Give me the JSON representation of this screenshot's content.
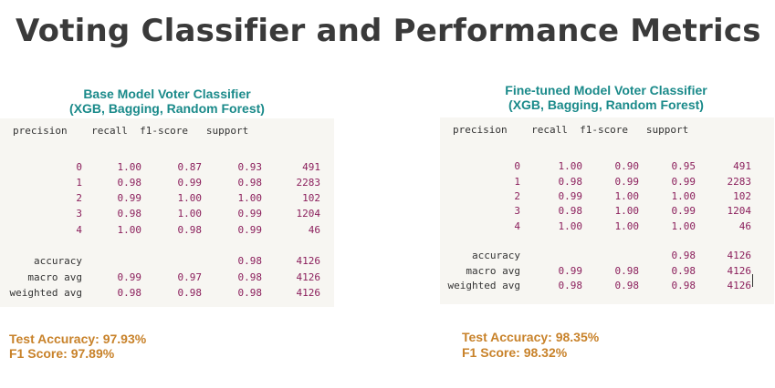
{
  "page": {
    "title": "Voting Classifier and Performance Metrics"
  },
  "panels": [
    {
      "heading": "Base Model Voter Classifier",
      "subheading": "(XGB, Bagging, Random Forest)",
      "header_text": "precision    recall  f1-score   support",
      "class_rows": [
        {
          "label": "0",
          "precision": "1.00",
          "recall": "0.87",
          "f1": "0.93",
          "support": "491"
        },
        {
          "label": "1",
          "precision": "0.98",
          "recall": "0.99",
          "f1": "0.98",
          "support": "2283"
        },
        {
          "label": "2",
          "precision": "0.99",
          "recall": "1.00",
          "f1": "1.00",
          "support": "102"
        },
        {
          "label": "3",
          "precision": "0.98",
          "recall": "1.00",
          "f1": "0.99",
          "support": "1204"
        },
        {
          "label": "4",
          "precision": "1.00",
          "recall": "0.98",
          "f1": "0.99",
          "support": "46"
        }
      ],
      "summary_rows": [
        {
          "label": "accuracy",
          "precision": "",
          "recall": "",
          "f1": "0.98",
          "support": "4126"
        },
        {
          "label": "macro avg",
          "precision": "0.99",
          "recall": "0.97",
          "f1": "0.98",
          "support": "4126"
        },
        {
          "label": "weighted avg",
          "precision": "0.98",
          "recall": "0.98",
          "f1": "0.98",
          "support": "4126"
        }
      ],
      "test_accuracy": "Test Accuracy: 97.93%",
      "f1_score": "F1 Score: 97.89%"
    },
    {
      "heading": "Fine-tuned Model Voter Classifier",
      "subheading": "(XGB, Bagging, Random Forest)",
      "header_text": "precision    recall  f1-score   support",
      "class_rows": [
        {
          "label": "0",
          "precision": "1.00",
          "recall": "0.90",
          "f1": "0.95",
          "support": "491"
        },
        {
          "label": "1",
          "precision": "0.98",
          "recall": "0.99",
          "f1": "0.99",
          "support": "2283"
        },
        {
          "label": "2",
          "precision": "0.99",
          "recall": "1.00",
          "f1": "1.00",
          "support": "102"
        },
        {
          "label": "3",
          "precision": "0.98",
          "recall": "1.00",
          "f1": "0.99",
          "support": "1204"
        },
        {
          "label": "4",
          "precision": "1.00",
          "recall": "1.00",
          "f1": "1.00",
          "support": "46"
        }
      ],
      "summary_rows": [
        {
          "label": "accuracy",
          "precision": "",
          "recall": "",
          "f1": "0.98",
          "support": "4126"
        },
        {
          "label": "macro avg",
          "precision": "0.99",
          "recall": "0.98",
          "f1": "0.98",
          "support": "4126"
        },
        {
          "label": "weighted avg",
          "precision": "0.98",
          "recall": "0.98",
          "f1": "0.98",
          "support": "4126"
        }
      ],
      "test_accuracy": "Test Accuracy: 98.35%",
      "f1_score": "F1 Score: 98.32%"
    }
  ]
}
